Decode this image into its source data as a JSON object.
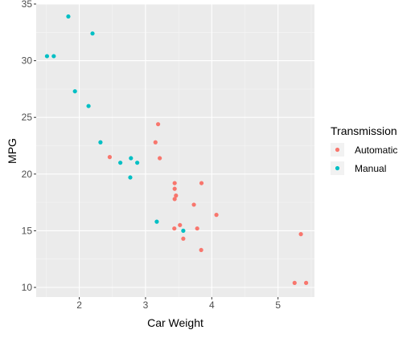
{
  "chart_data": {
    "type": "scatter",
    "title": "",
    "xlabel": "Car Weight",
    "ylabel": "MPG",
    "xlim": [
      1.35,
      5.55
    ],
    "ylim": [
      9.15,
      35.0
    ],
    "x_ticks": [
      "2",
      "3",
      "4",
      "5"
    ],
    "x_tick_values": [
      2,
      3,
      4,
      5
    ],
    "y_ticks": [
      "10",
      "15",
      "20",
      "25",
      "30",
      "35"
    ],
    "y_tick_values": [
      10,
      15,
      20,
      25,
      30,
      35
    ],
    "grid": true,
    "panel_background": "#EBEBEB",
    "legend": {
      "title": "Transmission",
      "position": "right"
    },
    "series": [
      {
        "name": "Automatic",
        "color": "#F8766D",
        "points": [
          {
            "x": 2.46,
            "y": 21.5
          },
          {
            "x": 3.15,
            "y": 22.8
          },
          {
            "x": 3.19,
            "y": 24.4
          },
          {
            "x": 3.215,
            "y": 21.4
          },
          {
            "x": 3.44,
            "y": 18.7
          },
          {
            "x": 3.44,
            "y": 19.2
          },
          {
            "x": 3.44,
            "y": 17.8
          },
          {
            "x": 3.46,
            "y": 18.1
          },
          {
            "x": 3.52,
            "y": 15.5
          },
          {
            "x": 3.435,
            "y": 15.2
          },
          {
            "x": 3.57,
            "y": 14.3
          },
          {
            "x": 3.73,
            "y": 17.3
          },
          {
            "x": 3.78,
            "y": 15.2
          },
          {
            "x": 3.845,
            "y": 19.2
          },
          {
            "x": 3.84,
            "y": 13.3
          },
          {
            "x": 4.07,
            "y": 16.4
          },
          {
            "x": 5.25,
            "y": 10.4
          },
          {
            "x": 5.345,
            "y": 14.7
          },
          {
            "x": 5.424,
            "y": 10.4
          }
        ]
      },
      {
        "name": "Manual",
        "color": "#00BFC4",
        "points": [
          {
            "x": 1.513,
            "y": 30.4
          },
          {
            "x": 1.615,
            "y": 30.4
          },
          {
            "x": 1.835,
            "y": 33.9
          },
          {
            "x": 1.935,
            "y": 27.3
          },
          {
            "x": 2.14,
            "y": 26.0
          },
          {
            "x": 2.2,
            "y": 32.4
          },
          {
            "x": 2.32,
            "y": 22.8
          },
          {
            "x": 2.62,
            "y": 21.0
          },
          {
            "x": 2.77,
            "y": 19.7
          },
          {
            "x": 2.78,
            "y": 21.4
          },
          {
            "x": 2.875,
            "y": 21.0
          },
          {
            "x": 3.17,
            "y": 15.8
          },
          {
            "x": 3.57,
            "y": 15.0
          }
        ]
      }
    ]
  }
}
